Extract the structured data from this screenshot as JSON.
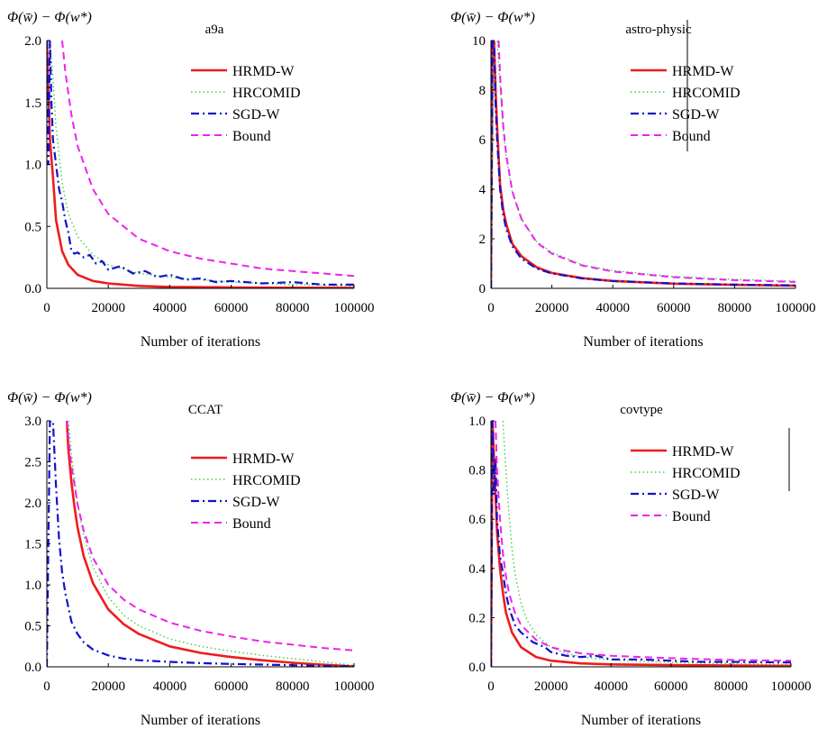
{
  "figure": {
    "ylabel": "Φ(w̄) − Φ(w*)",
    "xlabel": "Number of iterations"
  },
  "colors": {
    "HRMD-W": "#ee1c1c",
    "HRCOMID": "#3fcf3f",
    "SGD-W": "#1111cc",
    "Bound": "#ee22ee"
  },
  "chart_data": [
    {
      "type": "line",
      "title": "a9a",
      "xlabel": "Number of iterations",
      "ylabel": "Φ(w̄) − Φ(w*)",
      "xlim": [
        0,
        100000
      ],
      "ylim": [
        0,
        2.0
      ],
      "xticks": [
        "0",
        "20000",
        "40000",
        "60000",
        "80000",
        "100000"
      ],
      "yticks": [
        "0.0",
        "0.5",
        "1.0",
        "1.5",
        "2.0"
      ],
      "ytick_values": [
        0,
        0.5,
        1.0,
        1.5,
        2.0
      ],
      "legend": "top-right",
      "series": [
        {
          "name": "HRMD-W",
          "style": "solid",
          "x": [
            0,
            500,
            1000,
            2000,
            3000,
            5000,
            7000,
            10000,
            15000,
            20000,
            30000,
            40000,
            60000,
            80000,
            100000
          ],
          "y": [
            2.0,
            1.6,
            1.2,
            0.9,
            0.55,
            0.3,
            0.19,
            0.11,
            0.06,
            0.04,
            0.02,
            0.012,
            0.007,
            0.005,
            0.004
          ]
        },
        {
          "name": "HRCOMID",
          "style": "dotted",
          "x": [
            0,
            1000,
            2000,
            3000,
            5000,
            7000,
            10000,
            15000,
            20000,
            30000,
            40000,
            60000,
            80000,
            100000
          ],
          "y": [
            2.0,
            2.0,
            1.7,
            1.3,
            0.85,
            0.6,
            0.42,
            0.27,
            0.19,
            0.12,
            0.09,
            0.05,
            0.03,
            0.02
          ]
        },
        {
          "name": "SGD-W",
          "style": "dashdot",
          "x": [
            0,
            500,
            1000,
            1500,
            2000,
            3000,
            4000,
            5000,
            6000,
            7000,
            8000,
            9000,
            10000,
            12000,
            14000,
            16000,
            18000,
            20000,
            24000,
            28000,
            32000,
            36000,
            40000,
            45000,
            50000,
            55000,
            60000,
            70000,
            80000,
            90000,
            100000
          ],
          "y": [
            2.0,
            1.0,
            2.0,
            1.5,
            1.2,
            1.0,
            0.8,
            0.7,
            0.55,
            0.45,
            0.3,
            0.28,
            0.29,
            0.25,
            0.27,
            0.2,
            0.22,
            0.15,
            0.18,
            0.12,
            0.14,
            0.09,
            0.11,
            0.07,
            0.08,
            0.05,
            0.06,
            0.04,
            0.05,
            0.03,
            0.03
          ]
        },
        {
          "name": "Bound",
          "style": "dashed",
          "x": [
            5000,
            6000,
            8000,
            10000,
            15000,
            20000,
            30000,
            40000,
            50000,
            60000,
            70000,
            80000,
            90000,
            100000
          ],
          "y": [
            2.0,
            1.75,
            1.4,
            1.15,
            0.8,
            0.6,
            0.4,
            0.3,
            0.24,
            0.2,
            0.16,
            0.14,
            0.12,
            0.1
          ]
        }
      ]
    },
    {
      "type": "line",
      "title": "astro-physic",
      "xlabel": "Number of iterations",
      "ylabel": "Φ(w̄) − Φ(w*)",
      "xlim": [
        0,
        100000
      ],
      "ylim": [
        0,
        10
      ],
      "xticks": [
        "0",
        "20000",
        "40000",
        "60000",
        "80000",
        "100000"
      ],
      "yticks": [
        "0",
        "2",
        "4",
        "6",
        "8",
        "10"
      ],
      "ytick_values": [
        0,
        2,
        4,
        6,
        8,
        10
      ],
      "legend": "top-right",
      "series": [
        {
          "name": "HRMD-W",
          "style": "solid",
          "x": [
            0,
            500,
            1000,
            1500,
            2000,
            3000,
            4000,
            5000,
            7000,
            10000,
            15000,
            20000,
            30000,
            40000,
            60000,
            80000,
            100000
          ],
          "y": [
            0,
            10,
            10,
            8,
            6.5,
            4.2,
            3.2,
            2.6,
            1.8,
            1.3,
            0.85,
            0.62,
            0.41,
            0.3,
            0.19,
            0.14,
            0.11
          ]
        },
        {
          "name": "HRCOMID",
          "style": "dotted",
          "x": [
            0,
            1000,
            2000,
            3000,
            4000,
            5000,
            7000,
            10000,
            15000,
            20000,
            30000,
            40000,
            60000,
            80000,
            100000
          ],
          "y": [
            0,
            10,
            10,
            8.2,
            6.4,
            5.3,
            3.9,
            2.8,
            1.9,
            1.45,
            0.95,
            0.72,
            0.48,
            0.36,
            0.29
          ]
        },
        {
          "name": "SGD-W",
          "style": "dashdot",
          "x": [
            0,
            500,
            1000,
            1500,
            2000,
            3000,
            4000,
            5000,
            7000,
            10000,
            15000,
            20000,
            30000,
            40000,
            60000,
            80000,
            100000
          ],
          "y": [
            0,
            10,
            10,
            7.5,
            6.0,
            4.0,
            3.0,
            2.4,
            1.7,
            1.2,
            0.8,
            0.6,
            0.4,
            0.3,
            0.2,
            0.15,
            0.12
          ]
        },
        {
          "name": "Bound",
          "style": "dashed",
          "x": [
            2500,
            3000,
            4000,
            5000,
            7000,
            10000,
            15000,
            20000,
            30000,
            40000,
            60000,
            80000,
            100000
          ],
          "y": [
            10,
            8.6,
            6.6,
            5.4,
            3.9,
            2.8,
            1.85,
            1.4,
            0.92,
            0.68,
            0.45,
            0.33,
            0.26
          ]
        }
      ]
    },
    {
      "type": "line",
      "title": "CCAT",
      "xlabel": "Number of iterations",
      "ylabel": "Φ(w̄) − Φ(w*)",
      "xlim": [
        0,
        100000
      ],
      "ylim": [
        0,
        3.0
      ],
      "xticks": [
        "0",
        "20000",
        "40000",
        "60000",
        "80000",
        "100000"
      ],
      "yticks": [
        "0.0",
        "0.5",
        "1.0",
        "1.5",
        "2.0",
        "2.5",
        "3.0"
      ],
      "ytick_values": [
        0,
        0.5,
        1.0,
        1.5,
        2.0,
        2.5,
        3.0
      ],
      "legend": "top-right",
      "series": [
        {
          "name": "HRMD-W",
          "style": "solid",
          "x": [
            6500,
            7000,
            8000,
            9000,
            10000,
            12000,
            15000,
            20000,
            25000,
            30000,
            40000,
            50000,
            60000,
            70000,
            80000,
            90000,
            100000
          ],
          "y": [
            3.0,
            2.65,
            2.25,
            1.95,
            1.7,
            1.35,
            1.02,
            0.7,
            0.52,
            0.4,
            0.25,
            0.17,
            0.12,
            0.08,
            0.05,
            0.025,
            0.005
          ]
        },
        {
          "name": "HRCOMID",
          "style": "dotted",
          "x": [
            7000,
            8000,
            10000,
            12000,
            15000,
            20000,
            25000,
            30000,
            40000,
            50000,
            60000,
            70000,
            80000,
            90000,
            100000
          ],
          "y": [
            3.0,
            2.6,
            2.0,
            1.6,
            1.22,
            0.85,
            0.63,
            0.5,
            0.34,
            0.25,
            0.19,
            0.14,
            0.1,
            0.06,
            0.02
          ]
        },
        {
          "name": "SGD-W",
          "style": "dashdot",
          "x": [
            0,
            1000,
            2000,
            3000,
            4000,
            5000,
            6000,
            8000,
            10000,
            12000,
            15000,
            20000,
            25000,
            30000,
            40000,
            50000,
            60000,
            70000,
            80000,
            90000,
            100000
          ],
          "y": [
            0,
            3.0,
            3.0,
            2.2,
            1.55,
            1.15,
            0.9,
            0.55,
            0.4,
            0.3,
            0.21,
            0.14,
            0.1,
            0.08,
            0.06,
            0.045,
            0.035,
            0.028,
            0.02,
            0.012,
            0.005
          ]
        },
        {
          "name": "Bound",
          "style": "dashed",
          "x": [
            6500,
            7000,
            8000,
            10000,
            12000,
            15000,
            20000,
            25000,
            30000,
            40000,
            50000,
            60000,
            70000,
            80000,
            90000,
            100000
          ],
          "y": [
            3.0,
            2.8,
            2.45,
            1.98,
            1.66,
            1.33,
            1.0,
            0.82,
            0.7,
            0.54,
            0.44,
            0.37,
            0.31,
            0.27,
            0.23,
            0.2
          ]
        }
      ]
    },
    {
      "type": "line",
      "title": "covtype",
      "xlabel": "Number of iterations",
      "ylabel": "Φ(w̄) − Φ(w*)",
      "xlim": [
        0,
        100000
      ],
      "ylim": [
        0,
        1.0
      ],
      "xticks": [
        "0",
        "20000",
        "40000",
        "60000",
        "80000",
        "100000"
      ],
      "yticks": [
        "0.0",
        "0.2",
        "0.4",
        "0.6",
        "0.8",
        "1.0"
      ],
      "ytick_values": [
        0,
        0.2,
        0.4,
        0.6,
        0.8,
        1.0
      ],
      "legend": "top-right",
      "series": [
        {
          "name": "HRMD-W",
          "style": "solid",
          "x": [
            0,
            500,
            1000,
            1500,
            2000,
            3000,
            4000,
            5000,
            7000,
            10000,
            15000,
            20000,
            30000,
            40000,
            60000,
            80000,
            100000
          ],
          "y": [
            0,
            1.0,
            0.85,
            0.7,
            0.55,
            0.4,
            0.3,
            0.22,
            0.14,
            0.08,
            0.04,
            0.025,
            0.014,
            0.01,
            0.007,
            0.005,
            0.004
          ]
        },
        {
          "name": "HRCOMID",
          "style": "dotted",
          "x": [
            4000,
            5000,
            6000,
            7000,
            8000,
            10000,
            12000,
            15000,
            20000,
            25000,
            30000,
            40000,
            60000,
            80000,
            100000
          ],
          "y": [
            1.0,
            0.8,
            0.62,
            0.48,
            0.38,
            0.26,
            0.19,
            0.13,
            0.08,
            0.055,
            0.04,
            0.028,
            0.018,
            0.013,
            0.01
          ]
        },
        {
          "name": "SGD-W",
          "style": "dashdot",
          "x": [
            0,
            500,
            1000,
            1500,
            2000,
            3000,
            4000,
            5000,
            6000,
            8000,
            10000,
            12000,
            14000,
            16000,
            18000,
            20000,
            25000,
            30000,
            35000,
            40000,
            50000,
            60000,
            70000,
            80000,
            100000
          ],
          "y": [
            0,
            1.0,
            0.7,
            0.85,
            0.6,
            0.45,
            0.38,
            0.3,
            0.24,
            0.17,
            0.14,
            0.12,
            0.1,
            0.09,
            0.08,
            0.06,
            0.045,
            0.04,
            0.045,
            0.03,
            0.03,
            0.025,
            0.02,
            0.02,
            0.018
          ]
        },
        {
          "name": "Bound",
          "style": "dashed",
          "x": [
            1500,
            2000,
            3000,
            4000,
            5000,
            6000,
            8000,
            10000,
            15000,
            20000,
            25000,
            30000,
            40000,
            50000,
            60000,
            80000,
            100000
          ],
          "y": [
            1.0,
            0.8,
            0.6,
            0.46,
            0.37,
            0.3,
            0.22,
            0.17,
            0.11,
            0.08,
            0.065,
            0.055,
            0.045,
            0.04,
            0.035,
            0.028,
            0.025
          ]
        }
      ]
    }
  ]
}
